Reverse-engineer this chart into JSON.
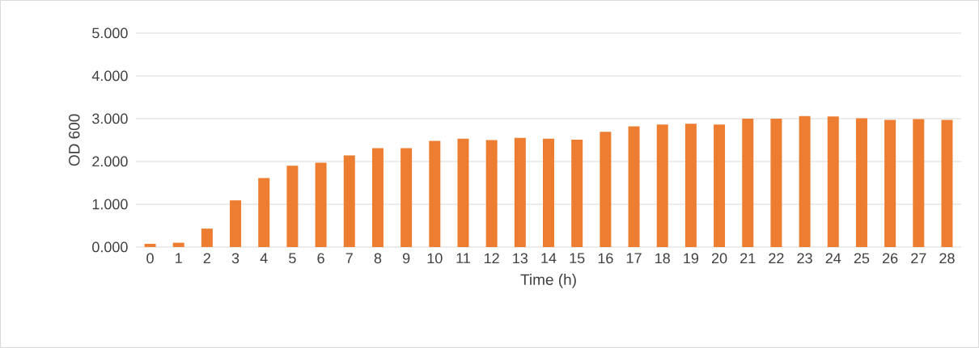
{
  "chart_data": {
    "type": "bar",
    "xlabel": "Time (h)",
    "ylabel": "OD 600",
    "categories": [
      "0",
      "1",
      "2",
      "3",
      "4",
      "5",
      "6",
      "7",
      "8",
      "9",
      "10",
      "11",
      "12",
      "13",
      "14",
      "15",
      "16",
      "17",
      "18",
      "19",
      "20",
      "21",
      "22",
      "23",
      "24",
      "25",
      "26",
      "27",
      "28"
    ],
    "values": [
      0.075,
      0.1,
      0.43,
      1.09,
      1.61,
      1.9,
      1.97,
      2.14,
      2.31,
      2.31,
      2.48,
      2.53,
      2.5,
      2.55,
      2.53,
      2.51,
      2.69,
      2.82,
      2.86,
      2.88,
      2.86,
      3.0,
      3.0,
      3.06,
      3.05,
      3.01,
      2.97,
      2.99,
      2.97
    ],
    "color": "#ed7d31",
    "ylim": [
      0,
      5
    ],
    "yticks": [
      {
        "value": 0,
        "label": "0.000"
      },
      {
        "value": 1,
        "label": "1.000"
      },
      {
        "value": 2,
        "label": "2.000"
      },
      {
        "value": 3,
        "label": "3.000"
      },
      {
        "value": 4,
        "label": "4.000"
      },
      {
        "value": 5,
        "label": "5.000"
      }
    ],
    "grid": "y"
  }
}
